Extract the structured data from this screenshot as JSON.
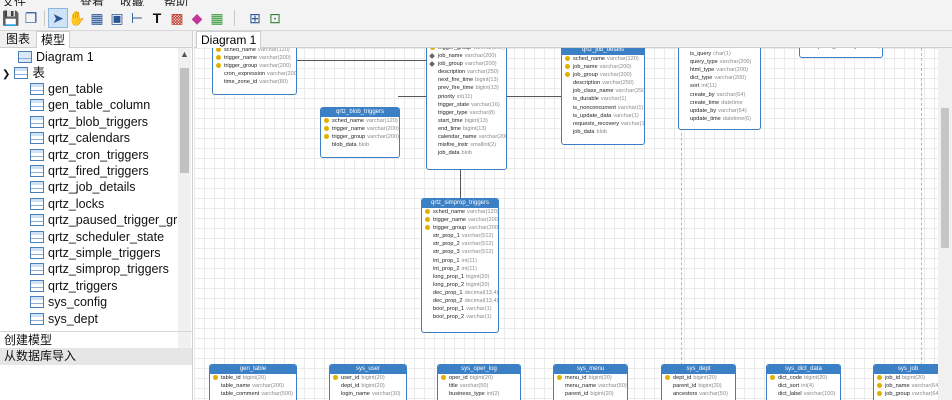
{
  "menu": [
    "文件",
    "查看",
    "收藏",
    "帮助"
  ],
  "toolbar": {
    "icons": [
      "save-icon",
      "copy-icon",
      "pointer-icon",
      "hand-icon",
      "table-icon",
      "view-icon",
      "relation-icon",
      "text-icon",
      "image-icon",
      "shape-icon",
      "layer-icon",
      "auto-layout-icon",
      "arrange-icon"
    ]
  },
  "left_tabs": [
    "图表",
    "模型"
  ],
  "tree": {
    "diagram": "Diagram 1",
    "tables_folder": "表",
    "tables": [
      "gen_table",
      "gen_table_column",
      "qrtz_blob_triggers",
      "qrtz_calendars",
      "qrtz_cron_triggers",
      "qrtz_fired_triggers",
      "qrtz_job_details",
      "qrtz_locks",
      "qrtz_paused_trigger_grps",
      "qrtz_scheduler_state",
      "qrtz_simple_triggers",
      "qrtz_simprop_triggers",
      "qrtz_triggers",
      "sys_config",
      "sys_dept"
    ]
  },
  "actions": {
    "create_model": "创建模型",
    "import_db": "从数据库导入"
  },
  "diagram_tab": "Diagram 1",
  "entities": {
    "cron": {
      "fields": [
        {
          "n": "sched_name",
          "t": "varchar(120)",
          "k": true
        },
        {
          "n": "trigger_name",
          "t": "varchar(200)",
          "k": true
        },
        {
          "n": "trigger_group",
          "t": "varchar(200)",
          "k": true
        },
        {
          "n": "cron_expression",
          "t": "varchar(200)"
        },
        {
          "n": "time_zone_id",
          "t": "varchar(80)"
        }
      ]
    },
    "blob": {
      "title": "qrtz_blob_triggers",
      "fields": [
        {
          "n": "sched_name",
          "t": "varchar(120)",
          "k": true
        },
        {
          "n": "trigger_name",
          "t": "varchar(200)",
          "k": true
        },
        {
          "n": "trigger_group",
          "t": "varchar(200)",
          "k": true
        },
        {
          "n": "blob_data",
          "t": "blob"
        }
      ]
    },
    "triggers": {
      "fields": [
        {
          "n": "trigger_group",
          "t": "varchar(200)",
          "k": true
        },
        {
          "n": "job_name",
          "t": "varchar(200)",
          "d": true
        },
        {
          "n": "job_group",
          "t": "varchar(200)",
          "d": true
        },
        {
          "n": "description",
          "t": "varchar(250)"
        },
        {
          "n": "next_fire_time",
          "t": "bigint(13)"
        },
        {
          "n": "prev_fire_time",
          "t": "bigint(13)"
        },
        {
          "n": "priority",
          "t": "int(11)"
        },
        {
          "n": "trigger_state",
          "t": "varchar(16)"
        },
        {
          "n": "trigger_type",
          "t": "varchar(8)"
        },
        {
          "n": "start_time",
          "t": "bigint(13)"
        },
        {
          "n": "end_time",
          "t": "bigint(13)"
        },
        {
          "n": "calendar_name",
          "t": "varchar(200)"
        },
        {
          "n": "misfire_instr",
          "t": "smallint(2)"
        },
        {
          "n": "job_data",
          "t": "blob"
        }
      ]
    },
    "job_details": {
      "title": "qrtz_job_details",
      "fields": [
        {
          "n": "sched_name",
          "t": "varchar(120)",
          "k": true
        },
        {
          "n": "job_name",
          "t": "varchar(200)",
          "k": true
        },
        {
          "n": "job_group",
          "t": "varchar(200)",
          "k": true
        },
        {
          "n": "description",
          "t": "varchar(250)"
        },
        {
          "n": "job_class_name",
          "t": "varchar(250)"
        },
        {
          "n": "is_durable",
          "t": "varchar(1)"
        },
        {
          "n": "is_nonconcurrent",
          "t": "varchar(1)"
        },
        {
          "n": "is_update_data",
          "t": "varchar(1)"
        },
        {
          "n": "requests_recovery",
          "t": "varchar(1)"
        },
        {
          "n": "job_data",
          "t": "blob"
        }
      ]
    },
    "job_log": {
      "fields": [
        {
          "n": "is_query",
          "t": "char(1)"
        },
        {
          "n": "is_query",
          "t": "char(1)"
        },
        {
          "n": "query_type",
          "t": "varchar(200)"
        },
        {
          "n": "html_type",
          "t": "varchar(200)"
        },
        {
          "n": "dict_type",
          "t": "varchar(200)"
        },
        {
          "n": "sort",
          "t": "int(11)"
        },
        {
          "n": "create_by",
          "t": "varchar(64)"
        },
        {
          "n": "create_time",
          "t": "datetime"
        },
        {
          "n": "update_by",
          "t": "varchar(64)"
        },
        {
          "n": "update_time",
          "t": "datetime(6)"
        }
      ]
    },
    "top_right": {
      "fields": [
        {
          "n": "requests_recovery",
          "t": "varchar(1)"
        }
      ]
    },
    "simprop": {
      "title": "qrtz_simprop_triggers",
      "fields": [
        {
          "n": "sched_name",
          "t": "varchar(120)",
          "k": true
        },
        {
          "n": "trigger_name",
          "t": "varchar(200)",
          "k": true
        },
        {
          "n": "trigger_group",
          "t": "varchar(200)",
          "k": true
        },
        {
          "n": "str_prop_1",
          "t": "varchar(512)"
        },
        {
          "n": "str_prop_2",
          "t": "varchar(512)"
        },
        {
          "n": "str_prop_3",
          "t": "varchar(512)"
        },
        {
          "n": "int_prop_1",
          "t": "int(11)"
        },
        {
          "n": "int_prop_2",
          "t": "int(11)"
        },
        {
          "n": "long_prop_1",
          "t": "bigint(20)"
        },
        {
          "n": "long_prop_2",
          "t": "bigint(20)"
        },
        {
          "n": "dec_prop_1",
          "t": "decimal(13,4)"
        },
        {
          "n": "dec_prop_2",
          "t": "decimal(13,4)"
        },
        {
          "n": "bool_prop_1",
          "t": "varchar(1)"
        },
        {
          "n": "bool_prop_2",
          "t": "varchar(1)"
        }
      ]
    },
    "gen_table": {
      "title": "gen_table",
      "fields": [
        {
          "n": "table_id",
          "t": "bigint(20)",
          "k": true
        },
        {
          "n": "table_name",
          "t": "varchar(200)"
        },
        {
          "n": "table_comment",
          "t": "varchar(500)"
        }
      ]
    },
    "sys_user": {
      "title": "sys_user",
      "fields": [
        {
          "n": "user_id",
          "t": "bigint(20)",
          "k": true
        },
        {
          "n": "dept_id",
          "t": "bigint(20)"
        },
        {
          "n": "login_name",
          "t": "varchar(30)"
        }
      ]
    },
    "sys_oper_log": {
      "title": "sys_oper_log",
      "fields": [
        {
          "n": "oper_id",
          "t": "bigint(20)",
          "k": true
        },
        {
          "n": "title",
          "t": "varchar(50)"
        },
        {
          "n": "business_type",
          "t": "int(2)"
        }
      ]
    },
    "sys_menu": {
      "title": "sys_menu",
      "fields": [
        {
          "n": "menu_id",
          "t": "bigint(20)",
          "k": true
        },
        {
          "n": "menu_name",
          "t": "varchar(50)"
        },
        {
          "n": "parent_id",
          "t": "bigint(20)"
        }
      ]
    },
    "sys_dept": {
      "title": "sys_dept",
      "fields": [
        {
          "n": "dept_id",
          "t": "bigint(20)",
          "k": true
        },
        {
          "n": "parent_id",
          "t": "bigint(20)"
        },
        {
          "n": "ancestors",
          "t": "varchar(50)"
        }
      ]
    },
    "sys_dict_data": {
      "title": "sys_dict_data",
      "fields": [
        {
          "n": "dict_code",
          "t": "bigint(20)",
          "k": true
        },
        {
          "n": "dict_sort",
          "t": "int(4)"
        },
        {
          "n": "dict_label",
          "t": "varchar(100)"
        }
      ]
    },
    "sys_job": {
      "title": "sys_job",
      "fields": [
        {
          "n": "job_id",
          "t": "bigint(20)",
          "k": true
        },
        {
          "n": "job_name",
          "t": "varchar(64)",
          "k": true
        },
        {
          "n": "job_group",
          "t": "varchar(64)",
          "k": true
        }
      ]
    }
  }
}
